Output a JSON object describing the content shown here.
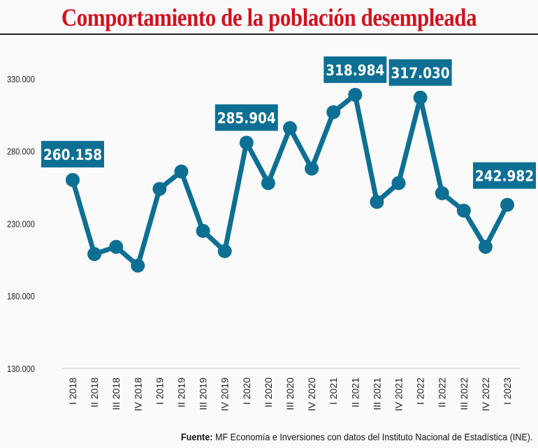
{
  "title": "Comportamiento de la población desempleada",
  "footer": {
    "label": "Fuente:",
    "text": "MF Economía e Inversiones con datos del Instituto Nacional de Estadística (INE)."
  },
  "colors": {
    "line": "#0e6f94",
    "title": "#d3111d",
    "label_text": "#ffffff"
  },
  "chart_data": {
    "type": "line",
    "title": "Comportamiento de la población desempleada",
    "xlabel": "",
    "ylabel": "",
    "ylim": [
      130000,
      330000
    ],
    "yticks": [
      130000,
      180000,
      230000,
      280000,
      330000
    ],
    "ytick_labels": [
      "130.000",
      "180.000",
      "230.000",
      "280.000",
      "330.000"
    ],
    "grid": false,
    "categories": [
      "I 2018",
      "II 2018",
      "III 2018",
      "IV 2018",
      "I 2019",
      "II 2019",
      "III 2019",
      "IV 2019",
      "I 2020",
      "II 2020",
      "III 2020",
      "IV 2020",
      "I 2021",
      "II 2021",
      "III 2021",
      "IV 2021",
      "I 2022",
      "II 2022",
      "III 2022",
      "IV 2022",
      "I 2023"
    ],
    "series": [
      {
        "name": "Población desempleada",
        "values": [
          260158,
          209000,
          214000,
          201000,
          254000,
          266000,
          225000,
          211000,
          285904,
          258000,
          296000,
          268000,
          307000,
          318984,
          245000,
          258000,
          317030,
          251000,
          239000,
          214000,
          242982
        ]
      }
    ],
    "annotations": [
      {
        "index": 0,
        "text": "260.158"
      },
      {
        "index": 8,
        "text": "285.904"
      },
      {
        "index": 13,
        "text": "318.984"
      },
      {
        "index": 16,
        "text": "317.030"
      },
      {
        "index": 20,
        "text": "242.982"
      }
    ]
  }
}
